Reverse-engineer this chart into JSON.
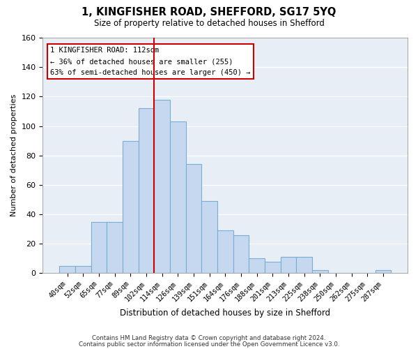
{
  "title": "1, KINGFISHER ROAD, SHEFFORD, SG17 5YQ",
  "subtitle": "Size of property relative to detached houses in Shefford",
  "xlabel": "Distribution of detached houses by size in Shefford",
  "ylabel": "Number of detached properties",
  "bar_labels": [
    "40sqm",
    "52sqm",
    "65sqm",
    "77sqm",
    "89sqm",
    "102sqm",
    "114sqm",
    "126sqm",
    "139sqm",
    "151sqm",
    "164sqm",
    "176sqm",
    "188sqm",
    "201sqm",
    "213sqm",
    "225sqm",
    "238sqm",
    "250sqm",
    "262sqm",
    "275sqm",
    "287sqm"
  ],
  "bar_values": [
    5,
    5,
    35,
    35,
    90,
    112,
    118,
    103,
    74,
    49,
    29,
    26,
    10,
    8,
    11,
    11,
    2,
    0,
    0,
    0,
    2
  ],
  "bar_color": "#c5d8f0",
  "bar_edge_color": "#7aadd4",
  "vline_x_index": 5,
  "vline_color": "#cc0000",
  "annotation_title": "1 KINGFISHER ROAD: 112sqm",
  "annotation_line1": "← 36% of detached houses are smaller (255)",
  "annotation_line2": "63% of semi-detached houses are larger (450) →",
  "ylim": [
    0,
    160
  ],
  "yticks": [
    0,
    20,
    40,
    60,
    80,
    100,
    120,
    140,
    160
  ],
  "footer_line1": "Contains HM Land Registry data © Crown copyright and database right 2024.",
  "footer_line2": "Contains public sector information licensed under the Open Government Licence v3.0.",
  "bg_color": "#e8eef5"
}
